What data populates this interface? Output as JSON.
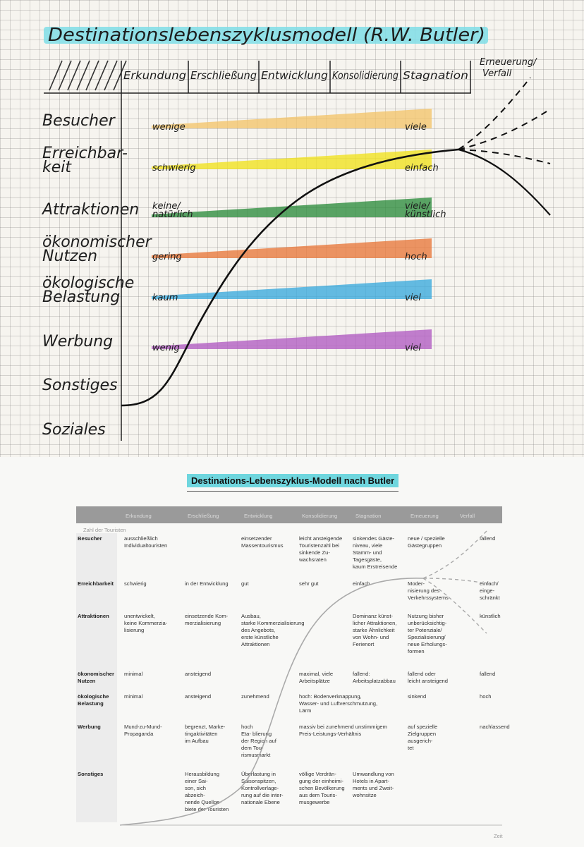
{
  "sheet": {
    "title": "Destinationslebenszyklusmodell (R.W. Butler)",
    "columns": [
      "Erkundung",
      "Erschließung",
      "Entwicklung",
      "Konsolidierung",
      "Stagnation"
    ],
    "final_column": [
      "Erneuerung/",
      "Verfall"
    ],
    "rows": [
      {
        "label": [
          "Besucher"
        ],
        "left": "wenige",
        "right": "viele",
        "color": "#f3c46a"
      },
      {
        "label": [
          "Erreichbar-",
          "keit"
        ],
        "left": "schwierig",
        "right": "einfach",
        "color": "#f1e21c"
      },
      {
        "label": [
          "Attraktionen"
        ],
        "left": [
          "keine/",
          "natürlich"
        ],
        "right": [
          "viele/",
          "künstlich"
        ],
        "color": "#2d8c3c"
      },
      {
        "label": [
          "ökonomischer",
          "Nutzen"
        ],
        "left": "gering",
        "right": "hoch",
        "color": "#e8773a"
      },
      {
        "label": [
          "ökologische",
          "Belastung"
        ],
        "left": "kaum",
        "right": "viel",
        "color": "#3aa9dc"
      },
      {
        "label": [
          "Werbung"
        ],
        "left": "wenig",
        "right": "viel",
        "color": "#b15bc2"
      },
      {
        "label": [
          "Sonstiges"
        ]
      },
      {
        "label": [
          "Soziales"
        ]
      }
    ]
  },
  "printed": {
    "title": "Destinations-Lebenszyklus-Modell nach Butler",
    "header": [
      "Erkundung",
      "Erschließung",
      "Entwicklung",
      "Konsolidierung",
      "Stagnation",
      "Erneuerung",
      "Verfall"
    ],
    "axis_label": "Zahl der Touristen",
    "rows": [
      {
        "label": [
          "Besucher"
        ],
        "cells": [
          [
            "ausschließlich",
            "Individualtouristen"
          ],
          [],
          [
            "einsetzender",
            "Massentourismus"
          ],
          [
            "leicht ansteigende",
            "Touristenzahl bei",
            "sinkende Zu-",
            "wachsraten"
          ],
          [
            "sinkendes Gäste-",
            "niveau, viele",
            "Stamm- und",
            "Tagesgäste,",
            "kaum Erstreisende"
          ],
          [
            "neue / spezielle",
            "Gästegruppen"
          ],
          [
            "fallend"
          ]
        ]
      },
      {
        "label": [
          "Erreichbarkeit"
        ],
        "cells": [
          [
            "schwierig"
          ],
          [
            "in der Entwicklung"
          ],
          [
            "gut"
          ],
          [
            "sehr gut"
          ],
          [
            "einfach"
          ],
          [
            "Moder-",
            "nisierung des",
            "Verkehrssystems"
          ],
          [
            "einfach/",
            "einge-",
            "schränkt"
          ]
        ]
      },
      {
        "label": [
          "Attraktionen"
        ],
        "cells": [
          [
            "unentwickelt,",
            "keine Kommerzia-",
            "lisierung"
          ],
          [
            "einsetzende Kom-",
            "merzialisierung"
          ],
          [
            "Ausbau,",
            "starke Kommerzialisierung",
            "des Angebots,",
            "erste künstliche",
            "Attraktionen"
          ],
          [],
          [
            "Dominanz künst-",
            "licher Attraktionen,",
            "starke Ähnlichkeit",
            "von Wohn- und",
            "Ferienort"
          ],
          [
            "Nutzung bisher",
            "unberücksichtig-",
            "ter Potenziale/",
            "Spezialisierung/",
            "neue Erholungs-",
            "formen"
          ],
          [
            "künstlich"
          ]
        ]
      },
      {
        "label": [
          "ökonomischer",
          "Nutzen"
        ],
        "cells": [
          [
            "minimal"
          ],
          [
            "ansteigend"
          ],
          [],
          [
            "maximal, viele",
            "Arbeitsplätze"
          ],
          [
            "fallend:",
            "Arbeitsplatzabbau"
          ],
          [
            "fallend oder",
            "leicht ansteigend"
          ],
          [
            "fallend"
          ]
        ]
      },
      {
        "label": [
          "ökologische",
          "Belastung"
        ],
        "cells": [
          [
            "minimal"
          ],
          [
            "ansteigend"
          ],
          [
            "zunehmend"
          ],
          [
            "hoch: Bodenverknappung,",
            "Wasser- und Luftverschmutzung,",
            "Lärm"
          ],
          [],
          [
            "sinkend"
          ],
          [
            "hoch"
          ]
        ]
      },
      {
        "label": [
          "Werbung"
        ],
        "cells": [
          [
            "Mund-zu-Mund-",
            "Propaganda"
          ],
          [
            "begrenzt, Marke-",
            "tingaktivitäten",
            "im Aufbau"
          ],
          [
            "hoch",
            "Eta-      blierung",
            "der     Region auf",
            "dem Tou-",
            "rismusmarkt"
          ],
          [
            "massiv bei zunehmend unstimmigem",
            "Preis-Leistungs-Verhältnis"
          ],
          [],
          [
            "auf spezielle",
            "Zielgruppen",
            "ausgerich-",
            "tet"
          ],
          [
            "nachlassend"
          ]
        ]
      },
      {
        "label": [
          "Sonstiges"
        ],
        "cells": [
          [],
          [
            "Herausbildung",
            "einer Sai-",
            "son,          sich",
            "abzeich-",
            "nende Quellge-",
            "biete der Touristen"
          ],
          [
            "Überlastung in",
            "Saisonspitzen,",
            "Kontrollverlage-",
            "rung auf die inter-",
            "nationale Ebene"
          ],
          [
            "völlige Verdrän-",
            "gung der einheimi-",
            "schen Bevölkerung",
            "aus dem Touris-",
            "musgewerbe"
          ],
          [
            "Umwandlung von",
            "Hotels in Apart-",
            "ments und Zweit-",
            "wohnsitze"
          ],
          [],
          []
        ]
      }
    ],
    "footer": "Zeit"
  }
}
